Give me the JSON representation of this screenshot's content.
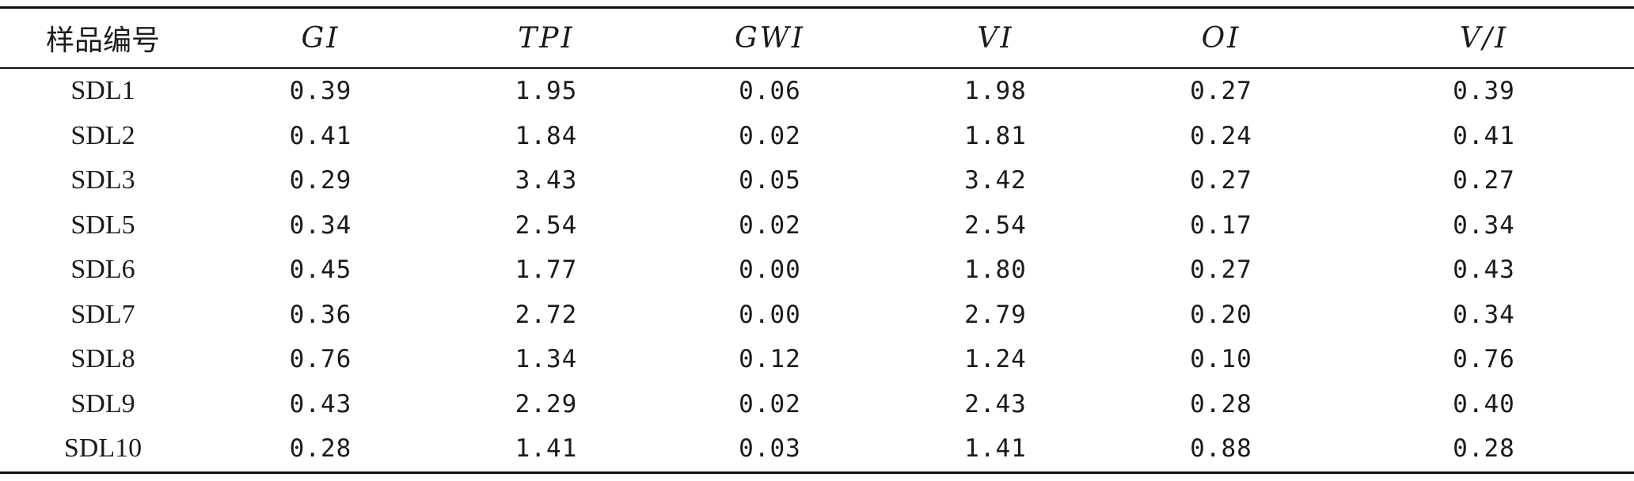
{
  "table": {
    "headers": [
      "样品编号",
      "GI",
      "TPI",
      "GWI",
      "VI",
      "OI",
      "V/I"
    ],
    "rows": [
      [
        "SDL1",
        "0.39",
        "1.95",
        "0.06",
        "1.98",
        "0.27",
        "0.39"
      ],
      [
        "SDL2",
        "0.41",
        "1.84",
        "0.02",
        "1.81",
        "0.24",
        "0.41"
      ],
      [
        "SDL3",
        "0.29",
        "3.43",
        "0.05",
        "3.42",
        "0.27",
        "0.27"
      ],
      [
        "SDL5",
        "0.34",
        "2.54",
        "0.02",
        "2.54",
        "0.17",
        "0.34"
      ],
      [
        "SDL6",
        "0.45",
        "1.77",
        "0.00",
        "1.80",
        "0.27",
        "0.43"
      ],
      [
        "SDL7",
        "0.36",
        "2.72",
        "0.00",
        "2.79",
        "0.20",
        "0.34"
      ],
      [
        "SDL8",
        "0.76",
        "1.34",
        "0.12",
        "1.24",
        "0.10",
        "0.76"
      ],
      [
        "SDL9",
        "0.43",
        "2.29",
        "0.02",
        "2.43",
        "0.28",
        "0.40"
      ],
      [
        "SDL10",
        "0.28",
        "1.41",
        "0.03",
        "1.41",
        "0.88",
        "0.28"
      ]
    ]
  }
}
